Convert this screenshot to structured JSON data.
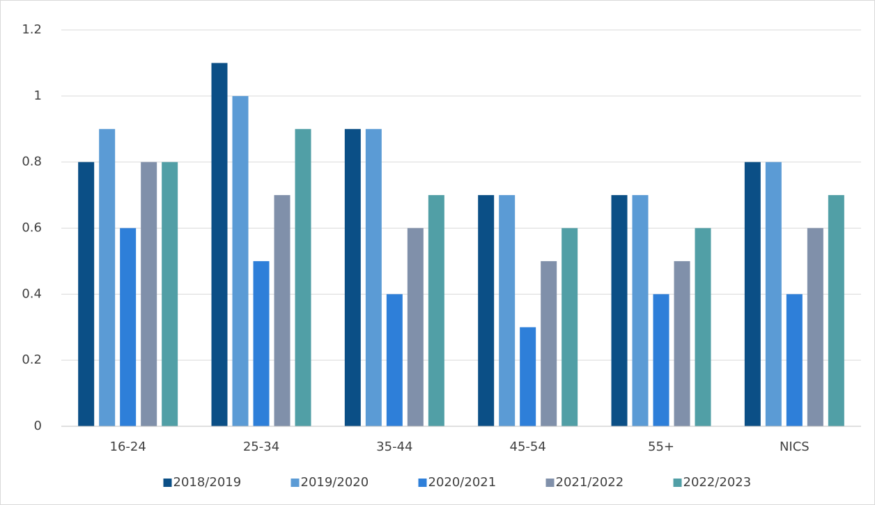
{
  "chart_data": {
    "type": "bar",
    "categories": [
      "16-24",
      "25-34",
      "35-44",
      "45-54",
      "55+",
      "NICS"
    ],
    "series": [
      {
        "name": "2018/2019",
        "color": "#0b4f86",
        "values": [
          0.8,
          1.1,
          0.9,
          0.7,
          0.7,
          0.8
        ]
      },
      {
        "name": "2019/2020",
        "color": "#5b9bd5",
        "values": [
          0.9,
          1.0,
          0.9,
          0.7,
          0.7,
          0.8
        ]
      },
      {
        "name": "2020/2021",
        "color": "#2e7fd9",
        "values": [
          0.6,
          0.5,
          0.4,
          0.3,
          0.4,
          0.4
        ]
      },
      {
        "name": "2021/2022",
        "color": "#8090aa",
        "values": [
          0.8,
          0.7,
          0.6,
          0.5,
          0.5,
          0.6
        ]
      },
      {
        "name": "2022/2023",
        "color": "#519fa6",
        "values": [
          0.8,
          0.9,
          0.7,
          0.6,
          0.6,
          0.7
        ]
      }
    ],
    "ylim": [
      0,
      1.2
    ],
    "yticks": [
      0,
      0.2,
      0.4,
      0.6,
      0.8,
      1,
      1.2
    ],
    "grid": true,
    "legend": "bottom"
  }
}
